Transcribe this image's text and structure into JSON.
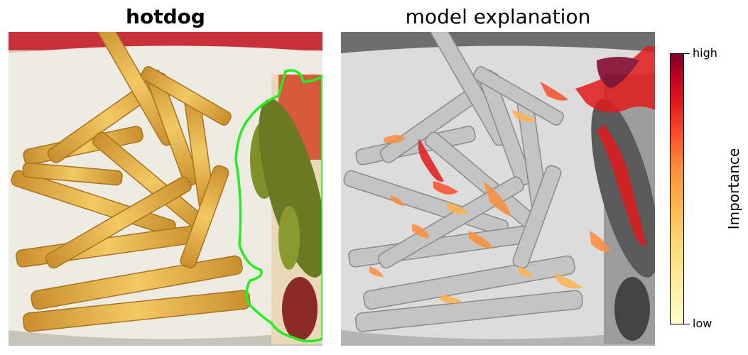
{
  "panels": {
    "left": {
      "title": "hotdog",
      "description_icon": "fries-and-hotdog-photo",
      "outline_color": "#22ee22"
    },
    "right": {
      "title": "model explanation",
      "description_icon": "grayscale-heatmap-overlay"
    }
  },
  "colorbar": {
    "label": "Importance",
    "high_label": "high",
    "low_label": "low",
    "colors": [
      "#ffffcc",
      "#ffeda0",
      "#fed976",
      "#feb24c",
      "#fd8d3c",
      "#fc4e2a",
      "#e31a1c",
      "#bd0026",
      "#800026"
    ]
  }
}
